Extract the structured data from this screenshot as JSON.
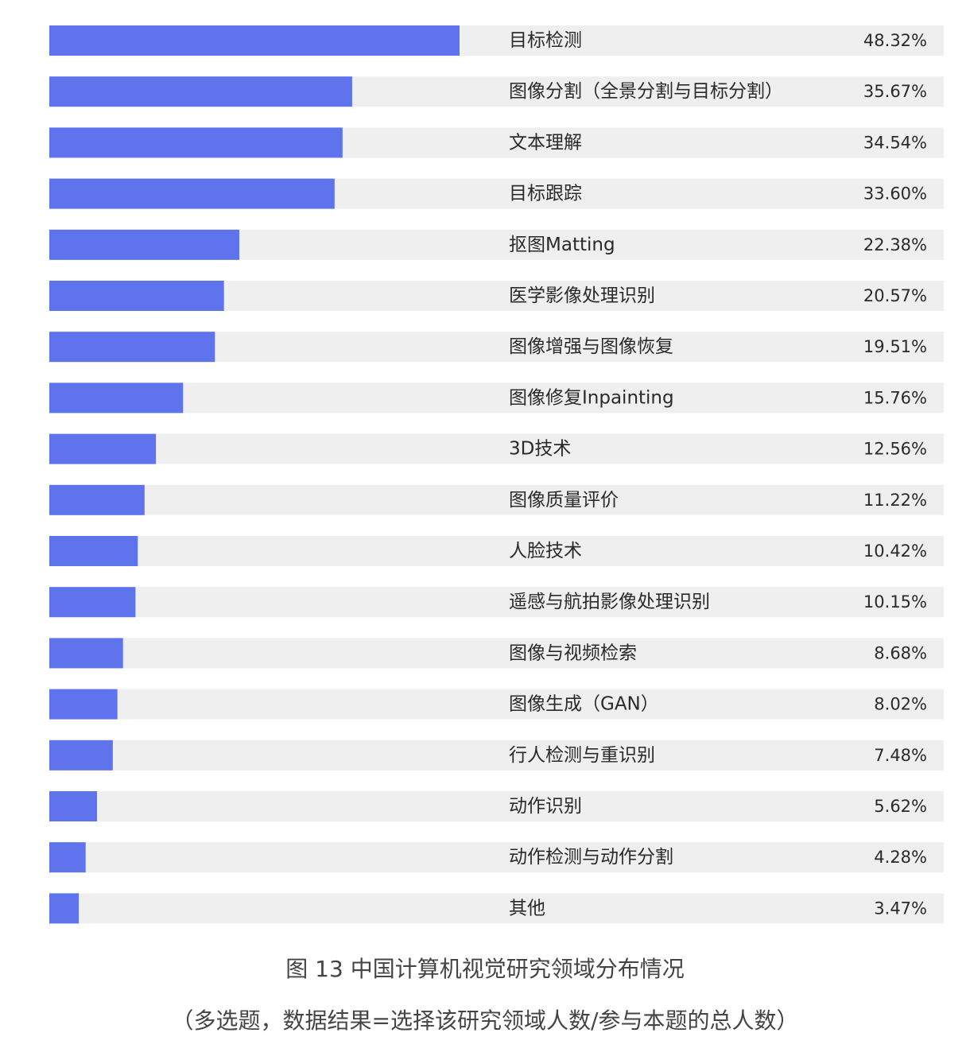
{
  "chart_data": {
    "type": "bar",
    "orientation": "horizontal",
    "categories": [
      "目标检测",
      "图像分割（全景分割与目标分割）",
      "文本理解",
      "目标跟踪",
      "抠图Matting",
      "医学影像处理识别",
      "图像增强与图像恢复",
      "图像修复Inpainting",
      "3D技术",
      "图像质量评价",
      "人脸技术",
      "遥感与航拍影像处理识别",
      "图像与视频检索",
      "图像生成（GAN）",
      "行人检测与重识别",
      "动作识别",
      "动作检测与动作分割",
      "其他"
    ],
    "values": [
      48.32,
      35.67,
      34.54,
      33.6,
      22.38,
      20.57,
      19.51,
      15.76,
      12.56,
      11.22,
      10.42,
      10.15,
      8.68,
      8.02,
      7.48,
      5.62,
      4.28,
      3.47
    ],
    "value_labels": [
      "48.32%",
      "35.67%",
      "34.54%",
      "33.60%",
      "22.38%",
      "20.57%",
      "19.51%",
      "15.76%",
      "12.56%",
      "11.22%",
      "10.42%",
      "10.15%",
      "8.68%",
      "8.02%",
      "7.48%",
      "5.62%",
      "4.28%",
      "3.47%"
    ],
    "xlim": [
      0,
      100
    ],
    "bar_color": "#5f73ec",
    "track_color": "#efefef",
    "grid": false,
    "legend": "none"
  },
  "caption": {
    "title": "图 13 中国计算机视觉研究领域分布情况",
    "note": "（多选题，数据结果=选择该研究领域人数/参与本题的总人数）"
  }
}
